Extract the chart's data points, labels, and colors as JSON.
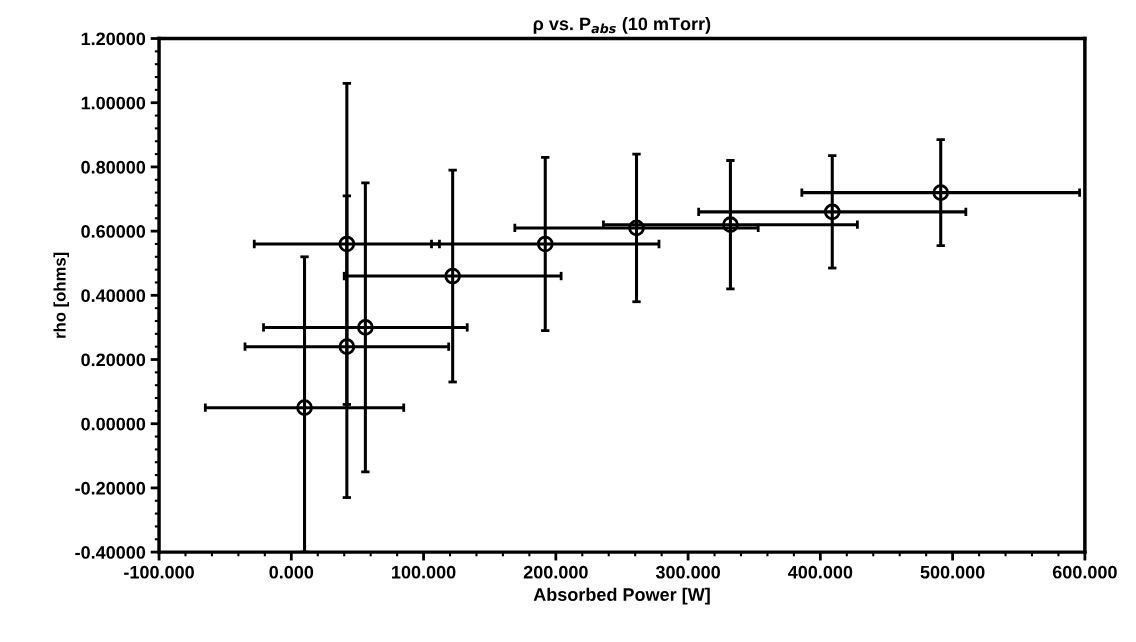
{
  "chart_data": {
    "type": "scatter",
    "title": "ρ vs. P$_{abs}$ (10 mTorr)",
    "xlabel": "Absorbed Power [W]",
    "ylabel": "rho [ohms]",
    "x": [
      10,
      42,
      56,
      42,
      122,
      192,
      261,
      332,
      409,
      491
    ],
    "series": [
      {
        "color": "#000000",
        "values": [
          0.05,
          0.24,
          0.3,
          0.56,
          0.46,
          0.56,
          0.61,
          0.62,
          0.66,
          0.72
        ],
        "errors": [
          [
            -0.4,
            0.52
          ],
          0.47,
          0.45,
          0.5,
          0.33,
          0.27,
          0.23,
          0.2,
          0.175,
          0.165
        ],
        "xerrors": [
          75,
          77,
          77,
          70,
          82,
          86,
          92,
          96,
          101,
          105
        ]
      }
    ],
    "marker": "circle",
    "grid": false,
    "xlim": [
      -100,
      600
    ],
    "ylim": [
      -0.4,
      1.2
    ],
    "xticks": [
      {
        "value": -100,
        "label": "-100.000"
      },
      {
        "value": 0,
        "label": "0.000"
      },
      {
        "value": 100,
        "label": "100.000"
      },
      {
        "value": 200,
        "label": "200.000"
      },
      {
        "value": 300,
        "label": "300.000"
      },
      {
        "value": 400,
        "label": "400.000"
      },
      {
        "value": 500,
        "label": "500.000"
      },
      {
        "value": 600,
        "label": "600.000"
      }
    ],
    "yticks": [
      {
        "value": -0.4,
        "label": "-0.40000"
      },
      {
        "value": -0.2,
        "label": "-0.20000"
      },
      {
        "value": 0,
        "label": "0.00000"
      },
      {
        "value": 0.2,
        "label": "0.20000"
      },
      {
        "value": 0.4,
        "label": "0.40000"
      },
      {
        "value": 0.6,
        "label": "0.60000"
      },
      {
        "value": 0.8,
        "label": "0.80000"
      },
      {
        "value": 1.0,
        "label": "1.00000"
      },
      {
        "value": 1.2,
        "label": "1.20000"
      }
    ]
  }
}
